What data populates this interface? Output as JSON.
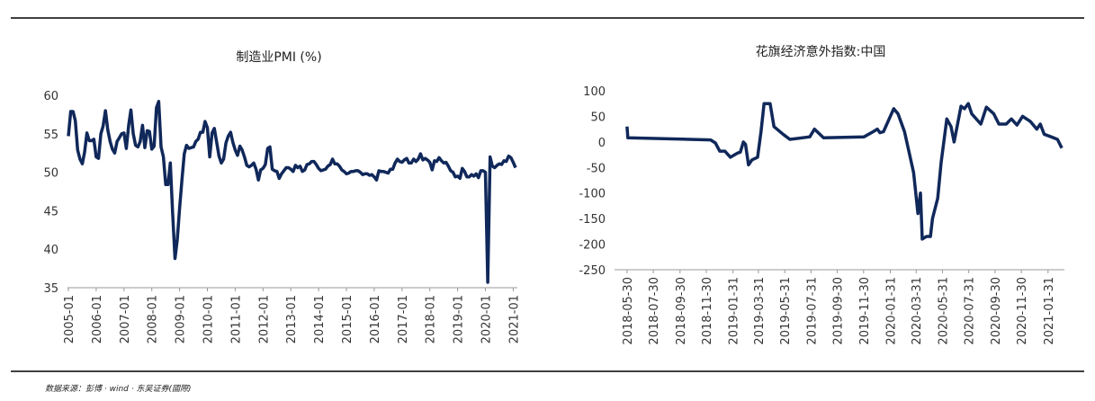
{
  "chart_data": [
    {
      "type": "line",
      "title": "制造业PMI (%)",
      "color": "#10285a",
      "categories": [
        "2005-01",
        null,
        null,
        null,
        null,
        null,
        null,
        null,
        null,
        null,
        null,
        null,
        "2006-01",
        null,
        null,
        null,
        null,
        null,
        null,
        null,
        null,
        null,
        null,
        null,
        "2007-01",
        null,
        null,
        null,
        null,
        null,
        null,
        null,
        null,
        null,
        null,
        null,
        "2008-01",
        null,
        null,
        null,
        null,
        null,
        null,
        null,
        null,
        null,
        null,
        null,
        "2009-01",
        null,
        null,
        null,
        null,
        null,
        null,
        null,
        null,
        null,
        null,
        null,
        "2010-01",
        null,
        null,
        null,
        null,
        null,
        null,
        null,
        null,
        null,
        null,
        null,
        "2011-01",
        null,
        null,
        null,
        null,
        null,
        null,
        null,
        null,
        null,
        null,
        null,
        "2012-01",
        null,
        null,
        null,
        null,
        null,
        null,
        null,
        null,
        null,
        null,
        null,
        "2013-01",
        null,
        null,
        null,
        null,
        null,
        null,
        null,
        null,
        null,
        null,
        null,
        "2014-01",
        null,
        null,
        null,
        null,
        null,
        null,
        null,
        null,
        null,
        null,
        null,
        "2015-01",
        null,
        null,
        null,
        null,
        null,
        null,
        null,
        null,
        null,
        null,
        null,
        "2016-01",
        null,
        null,
        null,
        null,
        null,
        null,
        null,
        null,
        null,
        null,
        null,
        "2017-01",
        null,
        null,
        null,
        null,
        null,
        null,
        null,
        null,
        null,
        null,
        null,
        "2018-01",
        null,
        null,
        null,
        null,
        null,
        null,
        null,
        null,
        null,
        null,
        null,
        "2019-01",
        null,
        null,
        null,
        null,
        null,
        null,
        null,
        null,
        null,
        null,
        null,
        "2020-01",
        null,
        null,
        null,
        null,
        null,
        null,
        null,
        null,
        null,
        null,
        null,
        "2021-01",
        null
      ],
      "values": [
        54.7,
        57.9,
        57.9,
        56.7,
        52.9,
        51.7,
        51.1,
        52.6,
        55.1,
        54.1,
        54.1,
        54.3,
        52.0,
        51.8,
        55.0,
        56.0,
        58.0,
        55.5,
        54.0,
        53.0,
        52.5,
        54.0,
        54.5,
        55.0,
        55.1,
        53.1,
        56.1,
        58.1,
        55.0,
        53.5,
        53.3,
        54.0,
        56.1,
        53.2,
        55.4,
        55.3,
        53.0,
        53.4,
        58.4,
        59.2,
        53.3,
        52.0,
        48.4,
        48.4,
        51.2,
        44.6,
        38.8,
        41.2,
        45.3,
        49.0,
        52.4,
        53.5,
        53.1,
        53.2,
        53.3,
        54.0,
        54.3,
        55.2,
        55.2,
        56.6,
        55.8,
        52.0,
        55.1,
        55.7,
        53.9,
        52.1,
        51.2,
        51.7,
        53.8,
        54.7,
        55.2,
        53.9,
        52.9,
        52.2,
        53.4,
        52.9,
        52.0,
        50.9,
        50.7,
        50.9,
        51.2,
        50.4,
        49.0,
        50.3,
        50.5,
        51.0,
        53.1,
        53.3,
        50.4,
        50.2,
        50.1,
        49.2,
        49.8,
        50.2,
        50.6,
        50.6,
        50.4,
        50.1,
        50.9,
        50.6,
        50.8,
        50.1,
        50.3,
        51.0,
        51.1,
        51.4,
        51.4,
        51.0,
        50.5,
        50.2,
        50.3,
        50.4,
        50.8,
        51.0,
        51.7,
        51.1,
        51.1,
        50.8,
        50.3,
        50.1,
        49.8,
        49.9,
        50.1,
        50.1,
        50.2,
        50.2,
        50.0,
        49.7,
        49.8,
        49.8,
        49.6,
        49.7,
        49.4,
        49.0,
        50.2,
        50.1,
        50.1,
        50.0,
        49.9,
        50.4,
        50.4,
        51.2,
        51.7,
        51.4,
        51.3,
        51.6,
        51.8,
        51.2,
        51.2,
        51.7,
        51.4,
        51.7,
        52.4,
        51.6,
        51.8,
        51.6,
        51.3,
        50.3,
        51.5,
        51.4,
        51.9,
        51.5,
        51.2,
        51.3,
        50.8,
        50.2,
        50.0,
        49.4,
        49.5,
        49.2,
        50.5,
        50.1,
        49.4,
        49.4,
        49.7,
        49.5,
        49.8,
        49.3,
        50.2,
        50.2,
        50.0,
        35.7,
        52.0,
        50.8,
        50.6,
        50.9,
        51.1,
        51.0,
        51.5,
        51.4,
        52.1,
        51.9,
        51.3,
        50.6
      ],
      "ylim": [
        35,
        60
      ],
      "yticks": [
        35,
        40,
        45,
        50,
        55,
        60
      ]
    },
    {
      "type": "line",
      "title": "花旗经济意外指数:中国",
      "color": "#10285a",
      "x": [
        "2018-05-30",
        "2018-06-01",
        "2018-12-10",
        "2018-12-21",
        "2018-12-31",
        "2019-01-12",
        "2019-01-25",
        "2019-02-10",
        "2019-02-17",
        "2019-02-24",
        "2019-03-01",
        "2019-03-08",
        "2019-03-16",
        "2019-03-29",
        "2019-04-06",
        "2019-04-13",
        "2019-04-27",
        "2019-05-06",
        "2019-05-27",
        "2019-06-12",
        "2019-07-28",
        "2019-08-08",
        "2019-08-29",
        "2019-12-01",
        "2019-12-22",
        "2020-01-01",
        "2020-01-07",
        "2020-01-15",
        "2020-02-08",
        "2020-02-18",
        "2020-03-04",
        "2020-03-25",
        "2020-04-04",
        "2020-04-10",
        "2020-04-14",
        "2020-04-24",
        "2020-05-03",
        "2020-05-08",
        "2020-05-20",
        "2020-05-28",
        "2020-06-10",
        "2020-06-20",
        "2020-06-27",
        "2020-07-13",
        "2020-07-21",
        "2020-07-30",
        "2020-08-07",
        "2020-08-28",
        "2020-09-10",
        "2020-09-27",
        "2020-10-09",
        "2020-10-26",
        "2020-11-07",
        "2020-11-20",
        "2020-12-03",
        "2020-12-21",
        "2021-01-05",
        "2021-01-13",
        "2021-01-22",
        "2021-02-07",
        "2021-02-22",
        "2021-03-04"
      ],
      "values": [
        30,
        8,
        4,
        -2,
        -18,
        -18,
        -30,
        -22,
        -20,
        0,
        -5,
        -45,
        -35,
        -30,
        20,
        75,
        75,
        30,
        15,
        5,
        10,
        25,
        8,
        10,
        20,
        25,
        18,
        20,
        65,
        55,
        20,
        -60,
        -140,
        -100,
        -190,
        -185,
        -185,
        -150,
        -110,
        -40,
        45,
        30,
        0,
        70,
        65,
        75,
        55,
        35,
        68,
        55,
        35,
        35,
        45,
        33,
        50,
        40,
        25,
        35,
        15,
        10,
        5,
        -12
      ],
      "xlim": [
        "2018-05-01",
        "2021-03-10"
      ],
      "xticks": [
        "2018-05-30",
        "2018-07-30",
        "2018-09-30",
        "2018-11-30",
        "2019-01-31",
        "2019-03-31",
        "2019-05-31",
        "2019-07-31",
        "2019-09-30",
        "2019-11-30",
        "2020-01-31",
        "2020-03-31",
        "2020-05-31",
        "2020-07-31",
        "2020-09-30",
        "2020-11-30",
        "2021-01-31"
      ],
      "ylim": [
        -250,
        100
      ],
      "yticks": [
        -250,
        -200,
        -150,
        -100,
        -50,
        0,
        50,
        100
      ]
    }
  ],
  "footer": "数据来源：彭博 · wind · 东吴证券(國際)"
}
